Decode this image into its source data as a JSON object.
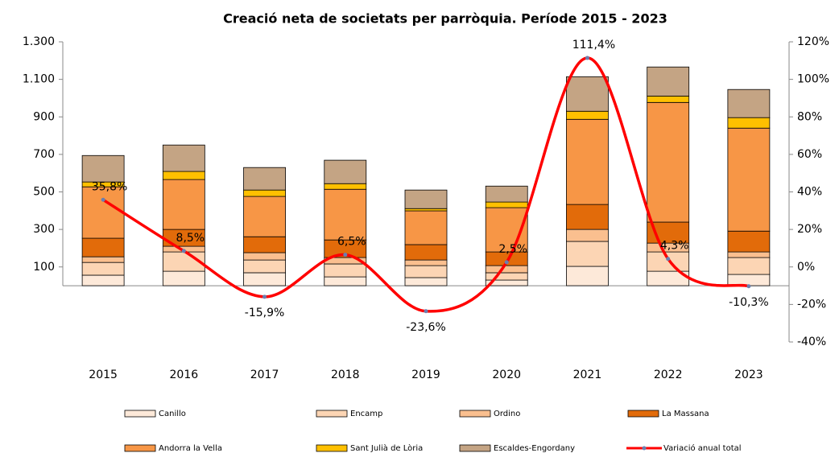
{
  "chart_data": {
    "type": "bar",
    "title": "Creació neta de societats per parròquia. Període 2015 - 2023",
    "categories": [
      "2015",
      "2016",
      "2017",
      "2018",
      "2019",
      "2020",
      "2021",
      "2022",
      "2023"
    ],
    "series": [
      {
        "name": "Canillo",
        "color": "#fde9d9",
        "values": [
          56,
          77,
          69,
          47,
          43,
          30,
          103,
          77,
          60
        ]
      },
      {
        "name": "Encamp",
        "color": "#fcd5b4",
        "values": [
          68,
          103,
          68,
          69,
          64,
          39,
          133,
          103,
          90
        ]
      },
      {
        "name": "Ordino",
        "color": "#fabf8f",
        "values": [
          30,
          30,
          39,
          34,
          30,
          38,
          64,
          47,
          30
        ]
      },
      {
        "name": "La Massana",
        "color": "#e26b0a",
        "values": [
          99,
          90,
          85,
          94,
          82,
          73,
          133,
          112,
          111
        ]
      },
      {
        "name": "Andorra la Vella",
        "color": "#f79646",
        "values": [
          274,
          266,
          215,
          270,
          180,
          236,
          454,
          638,
          549
        ]
      },
      {
        "name": "Sant Julià de Lòria",
        "color": "#ffc000",
        "values": [
          26,
          43,
          34,
          30,
          12,
          30,
          43,
          34,
          56
        ]
      },
      {
        "name": "Escaldes-Engordany",
        "color": "#c4a484",
        "values": [
          141,
          141,
          120,
          125,
          99,
          85,
          184,
          155,
          150
        ]
      },
      {
        "name": "Variació anual total",
        "color": "#ff0000",
        "type": "line",
        "axis": "y2",
        "values": [
          35.8,
          8.5,
          -15.9,
          6.5,
          -23.6,
          2.5,
          111.4,
          4.3,
          -10.3
        ],
        "value_labels": [
          "35,8%",
          "8,5%",
          "-15,9%",
          "6,5%",
          "-23,6%",
          "2,5%",
          "111,4%",
          "4,3%",
          "-10,3%"
        ]
      }
    ],
    "ylim": [
      -300,
      1300
    ],
    "yticks": [
      100,
      300,
      500,
      700,
      900,
      {
        "value": 1100,
        "label": "1.100"
      },
      {
        "value": 1300,
        "label": "1.300"
      }
    ],
    "y2lim": [
      -40,
      120
    ],
    "y2ticks": [
      {
        "value": -40,
        "label": "-40%"
      },
      {
        "value": -20,
        "label": "-20%"
      },
      {
        "value": 0,
        "label": "0%"
      },
      {
        "value": 20,
        "label": "20%"
      },
      {
        "value": 40,
        "label": "40%"
      },
      {
        "value": 60,
        "label": "60%"
      },
      {
        "value": 80,
        "label": "80%"
      },
      {
        "value": 100,
        "label": "100%"
      },
      {
        "value": 120,
        "label": "120%"
      }
    ],
    "grid": false
  }
}
